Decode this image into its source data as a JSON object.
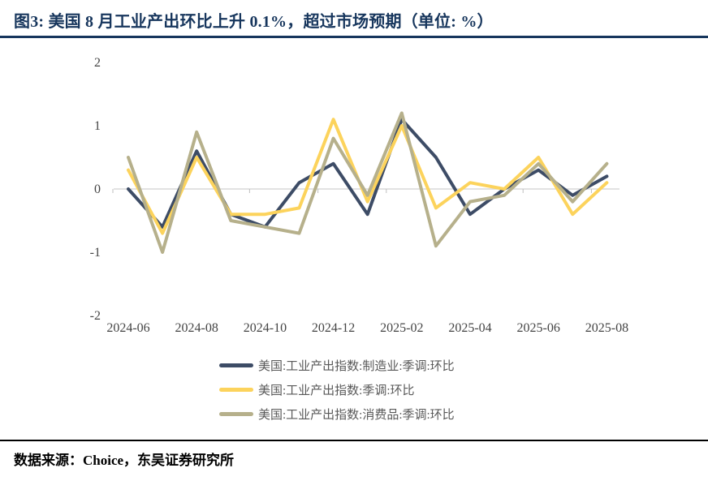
{
  "title": {
    "text": "图3:  美国 8 月工业产出环比上升 0.1%，超过市场预期（单位:  %）"
  },
  "footer": {
    "text": "数据来源：Choice，东吴证券研究所"
  },
  "colors": {
    "title_navy": "#17365d",
    "axis_text": "#444444",
    "legend_text": "#595959",
    "zero_line": "#d9d9d9",
    "tick": "#bfbfbf",
    "footer_rule": "#000000"
  },
  "chart_data": {
    "type": "line",
    "x": [
      "2024-06",
      "2024-07",
      "2024-08",
      "2024-09",
      "2024-10",
      "2024-11",
      "2024-12",
      "2025-01",
      "2025-02",
      "2025-03",
      "2025-04",
      "2025-05",
      "2025-06",
      "2025-07",
      "2025-08"
    ],
    "x_tick_labels": [
      "2024-06",
      "2024-08",
      "2024-10",
      "2024-12",
      "2025-02",
      "2025-04",
      "2025-06",
      "2025-08"
    ],
    "yticks": [
      2,
      1,
      0,
      -1,
      -2
    ],
    "ylim": [
      -2,
      2
    ],
    "grid": "zero-line-only",
    "legend_position": "bottom-left",
    "series": [
      {
        "name": "美国:工业产出指数:制造业:季调:环比",
        "color": "#3d4c66",
        "values": [
          0.0,
          -0.6,
          0.6,
          -0.4,
          -0.6,
          0.1,
          0.4,
          -0.4,
          1.1,
          0.5,
          -0.4,
          0.0,
          0.3,
          -0.1,
          0.2
        ]
      },
      {
        "name": "美国:工业产出指数:季调:环比",
        "color": "#fcd35c",
        "values": [
          0.3,
          -0.7,
          0.5,
          -0.4,
          -0.4,
          -0.3,
          1.1,
          -0.2,
          1.0,
          -0.3,
          0.1,
          0.0,
          0.5,
          -0.4,
          0.1
        ]
      },
      {
        "name": "美国:工业产出指数:消费品:季调:环比",
        "color": "#b6b08b",
        "values": [
          0.5,
          -1.0,
          0.9,
          -0.5,
          -0.6,
          -0.7,
          0.8,
          -0.1,
          1.2,
          -0.9,
          -0.2,
          -0.1,
          0.4,
          -0.2,
          0.4
        ]
      }
    ]
  }
}
